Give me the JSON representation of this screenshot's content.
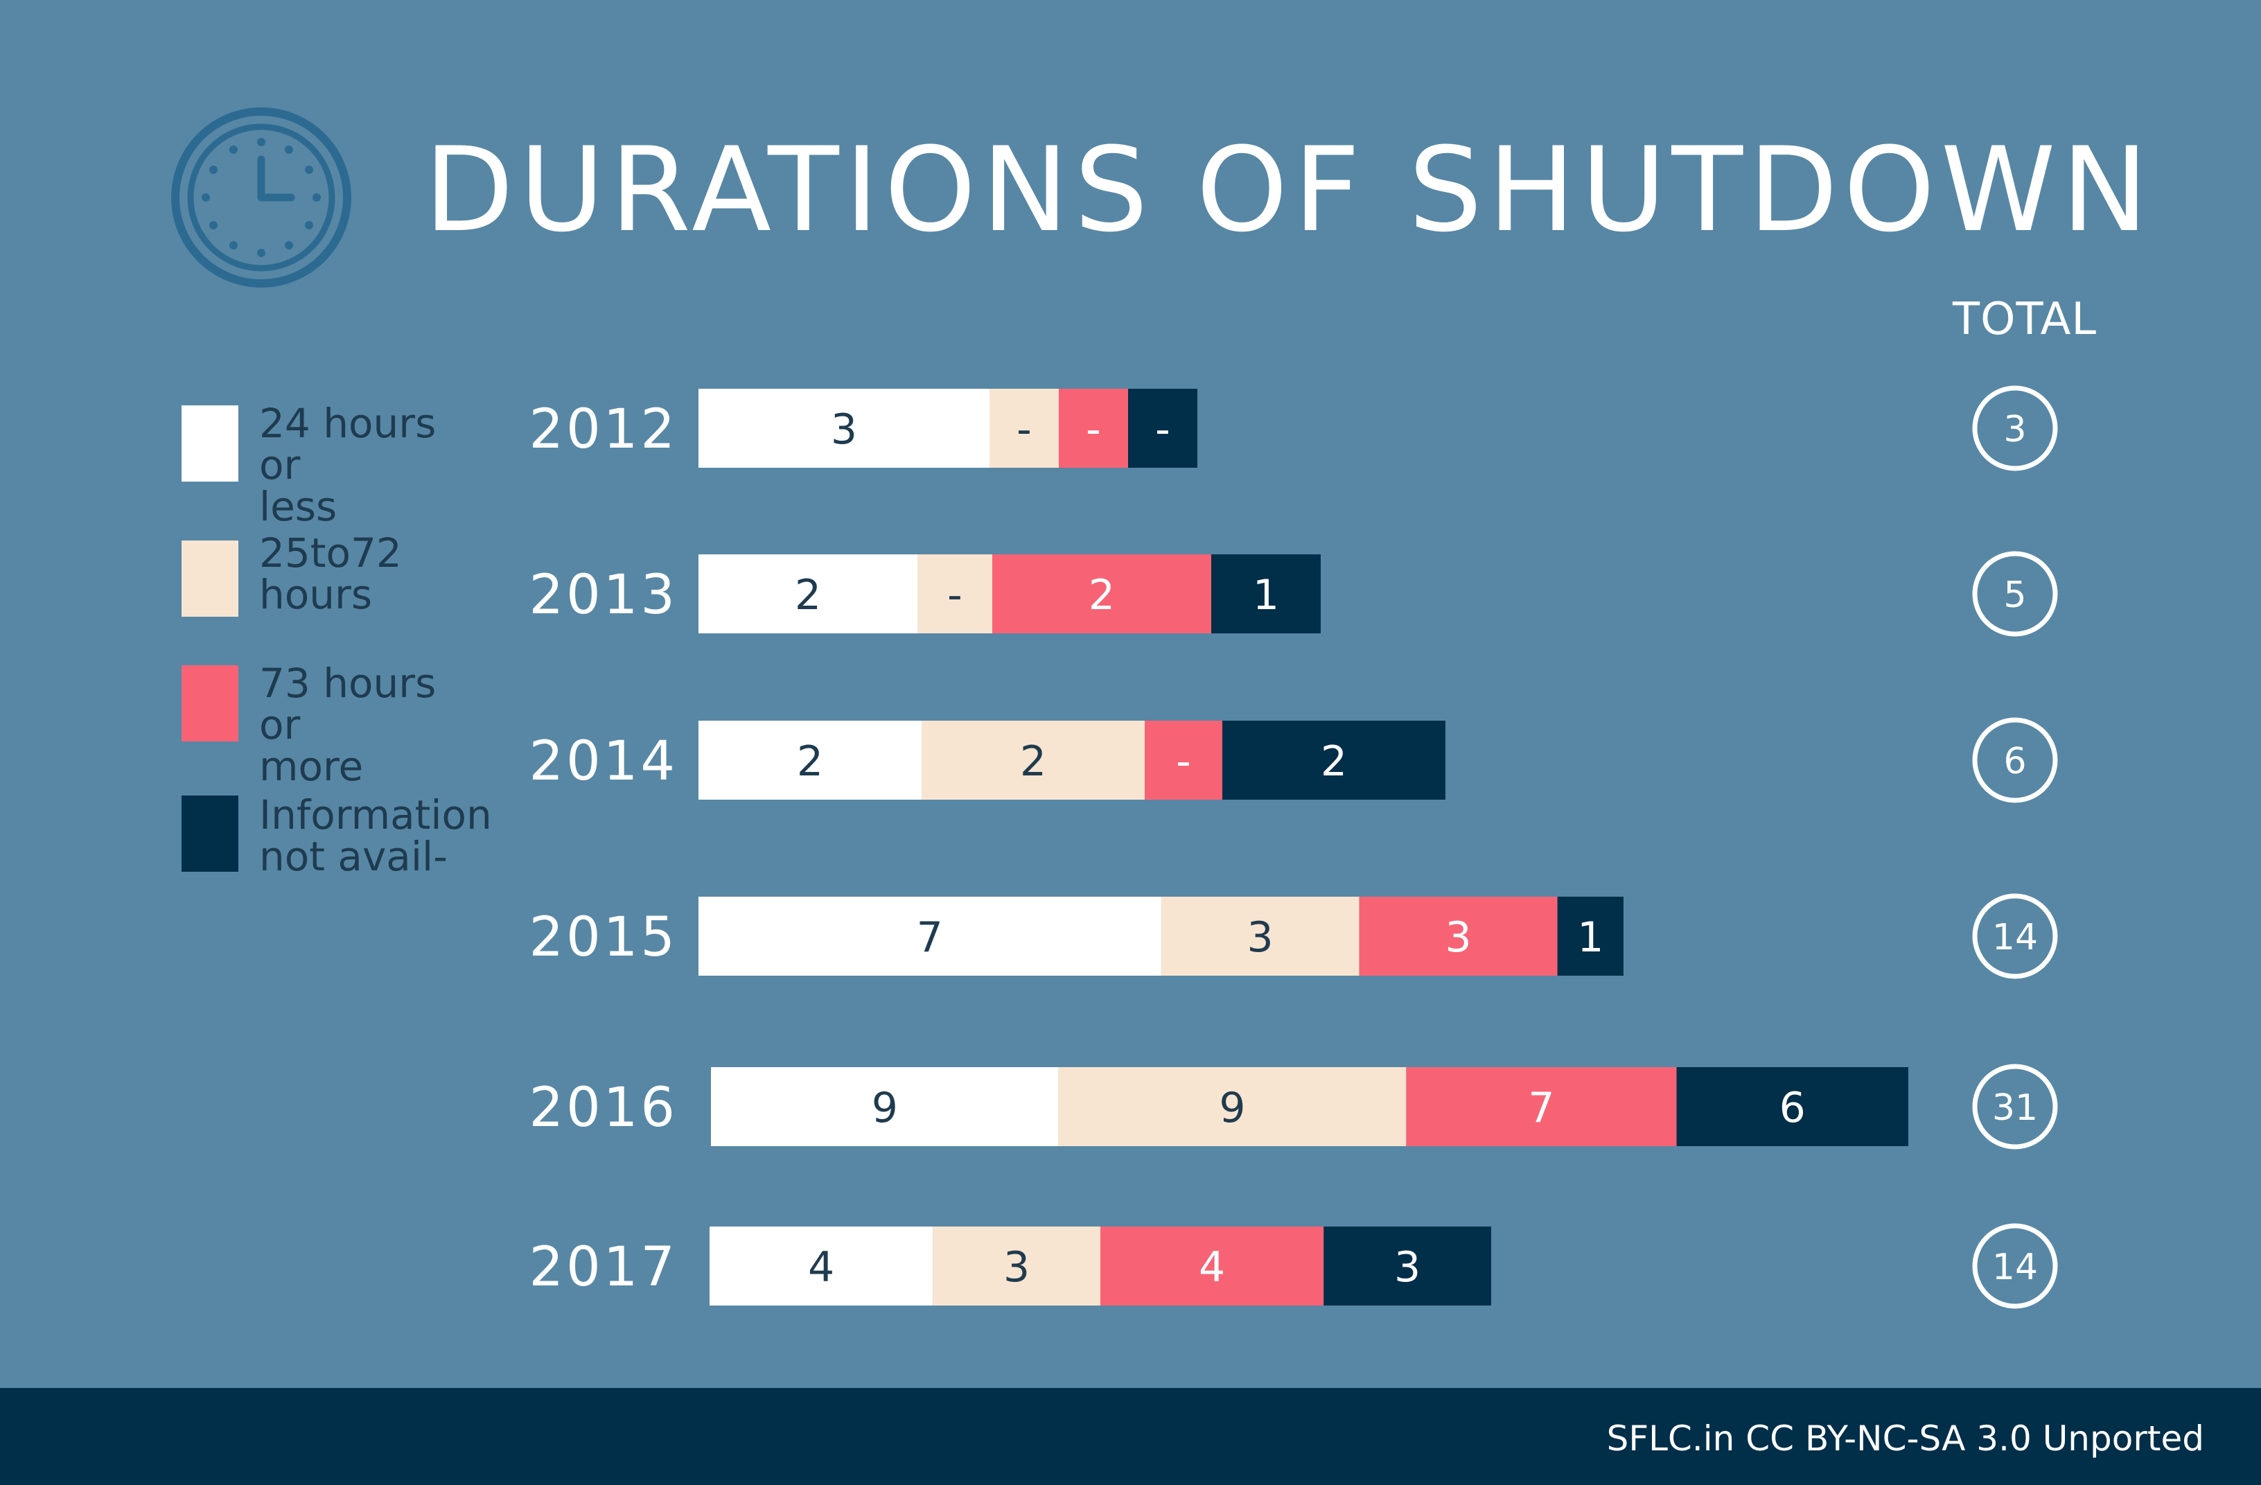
{
  "title": "DURATIONS OF SHUTDOWN",
  "total_header": "TOTAL",
  "footer": "SFLC.in CC BY-NC-SA 3.0 Unported",
  "legend": [
    {
      "label": "24 hours or less",
      "lines": [
        "24 hours or",
        "less"
      ],
      "color": "#ffffff"
    },
    {
      "label": "25to72 hours",
      "lines": [
        "25to72",
        "hours"
      ],
      "color": "#f8e5d1"
    },
    {
      "label": "73 hours or more",
      "lines": [
        "73 hours or",
        "more"
      ],
      "color": "#f76375"
    },
    {
      "label": "Information not avail-",
      "lines": [
        "Information",
        "not avail-"
      ],
      "color": "#012e49"
    }
  ],
  "colors": {
    "background": "#5787a5",
    "dark": "#012e49",
    "white": "#ffffff",
    "beige": "#f8e5d1",
    "pink": "#f76375",
    "clock_icon": "#2d6a91"
  },
  "icons": [
    "clock-icon"
  ],
  "chart_data": {
    "type": "bar",
    "orientation": "horizontal",
    "stacked": true,
    "title": "DURATIONS OF SHUTDOWN",
    "categories": [
      "2012",
      "2013",
      "2014",
      "2015",
      "2016",
      "2017"
    ],
    "series": [
      {
        "name": "24 hours or less",
        "values": [
          3,
          2,
          2,
          7,
          9,
          4
        ],
        "labels": [
          "3",
          "2",
          "2",
          "7",
          "9",
          "4"
        ]
      },
      {
        "name": "25to72 hours",
        "values": [
          0,
          0,
          2,
          3,
          9,
          3
        ],
        "labels": [
          "-",
          "-",
          "2",
          "3",
          "9",
          "3"
        ]
      },
      {
        "name": "73 hours or more",
        "values": [
          0,
          2,
          0,
          3,
          7,
          4
        ],
        "labels": [
          "-",
          "2",
          "-",
          "3",
          "7",
          "4"
        ]
      },
      {
        "name": "Information not avail-",
        "values": [
          0,
          1,
          2,
          1,
          6,
          3
        ],
        "labels": [
          "-",
          "1",
          "2",
          "1",
          "6",
          "3"
        ]
      }
    ],
    "totals": [
      3,
      5,
      6,
      14,
      31,
      14
    ],
    "legend": "left"
  }
}
